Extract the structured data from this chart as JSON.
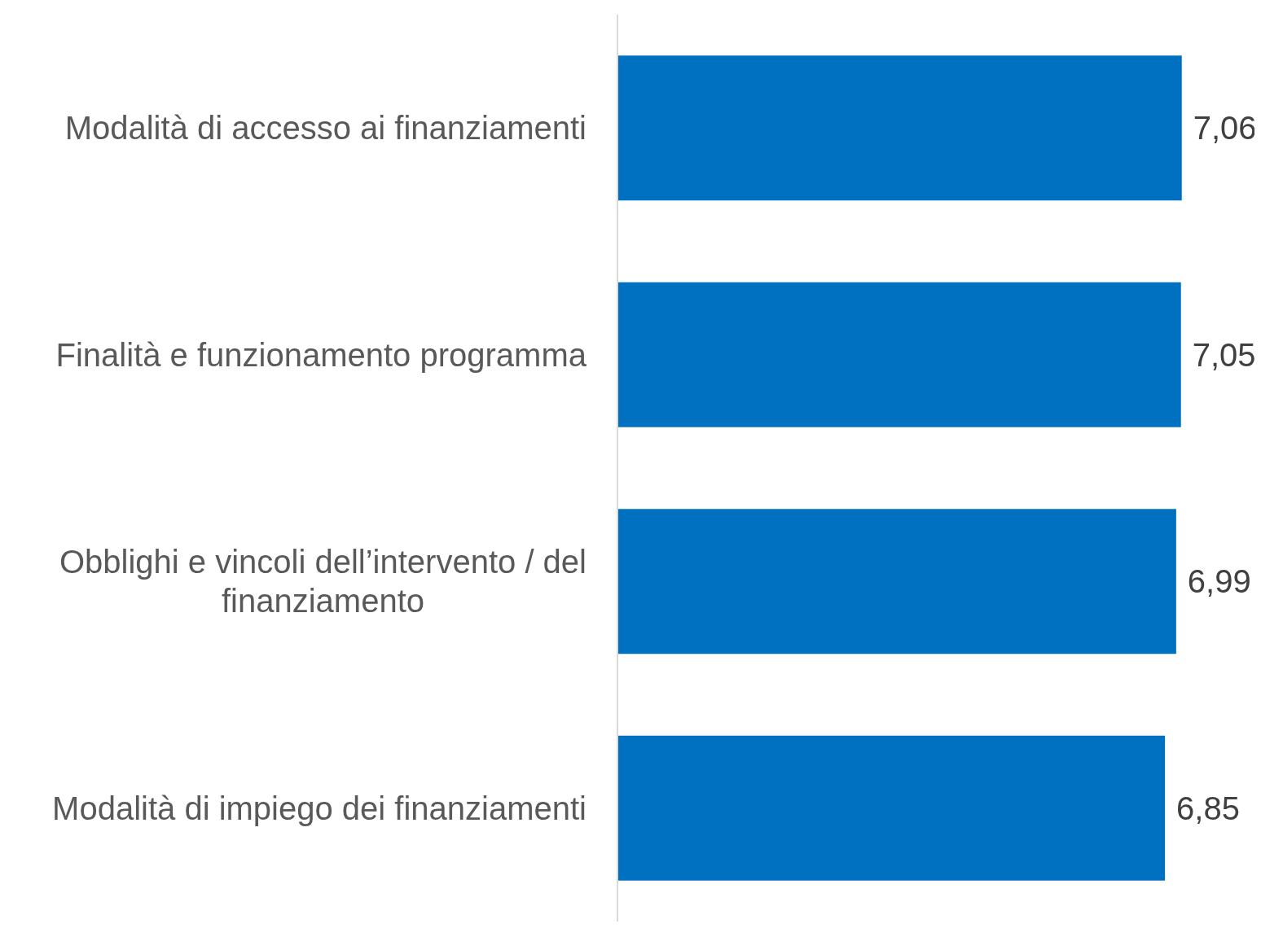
{
  "chart_data": {
    "type": "bar",
    "orientation": "horizontal",
    "categories": [
      "Modalità di accesso ai finanziamenti",
      "Finalità e funzionamento programma",
      "Obblighi e vincoli dell’intervento / del finanziamento",
      "Modalità di impiego dei finanziamenti"
    ],
    "values": [
      7.06,
      7.05,
      6.99,
      6.85
    ],
    "value_labels": [
      "7,06",
      "7,05",
      "6,99",
      "6,85"
    ],
    "color": "#0070c0",
    "tick_labels": "y"
  }
}
